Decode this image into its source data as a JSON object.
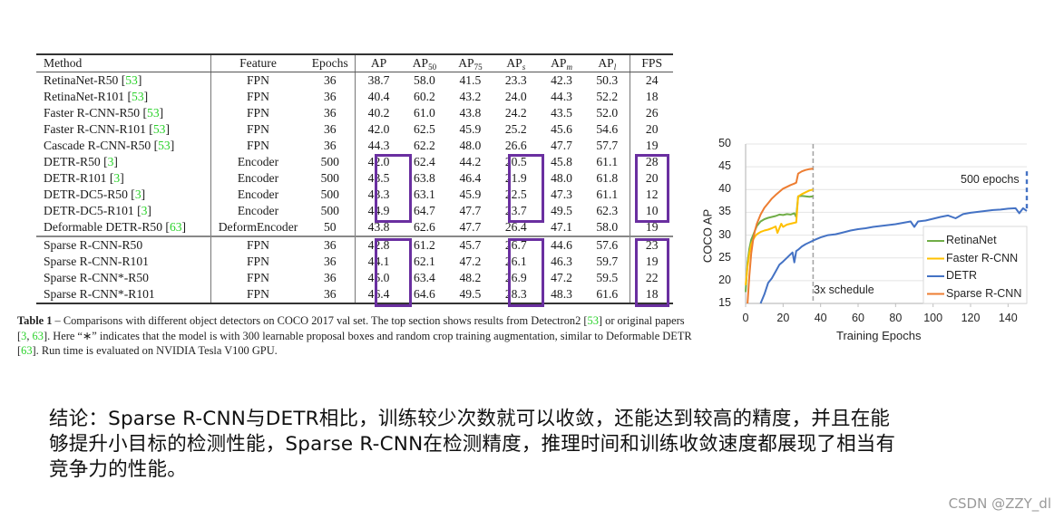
{
  "table": {
    "columns": [
      "Method",
      "Feature",
      "Epochs",
      "AP",
      "AP50",
      "AP75",
      "APs",
      "APm",
      "APl",
      "FPS"
    ],
    "header": {
      "method": "Method",
      "feature": "Feature",
      "epochs": "Epochs",
      "ap": "AP",
      "ap50_base": "AP",
      "ap50_sub": "50",
      "ap75_base": "AP",
      "ap75_sub": "75",
      "aps_base": "AP",
      "aps_sub": "s",
      "apm_base": "AP",
      "apm_sub": "m",
      "apl_base": "AP",
      "apl_sub": "l",
      "fps": "FPS"
    },
    "top_section": [
      {
        "method": "RetinaNet-R50",
        "ref": "53",
        "feature": "FPN",
        "epochs": "36",
        "ap": "38.7",
        "ap50": "58.0",
        "ap75": "41.5",
        "aps": "23.3",
        "apm": "42.3",
        "apl": "50.3",
        "fps": "24"
      },
      {
        "method": "RetinaNet-R101",
        "ref": "53",
        "feature": "FPN",
        "epochs": "36",
        "ap": "40.4",
        "ap50": "60.2",
        "ap75": "43.2",
        "aps": "24.0",
        "apm": "44.3",
        "apl": "52.2",
        "fps": "18"
      },
      {
        "method": "Faster R-CNN-R50",
        "ref": "53",
        "feature": "FPN",
        "epochs": "36",
        "ap": "40.2",
        "ap50": "61.0",
        "ap75": "43.8",
        "aps": "24.2",
        "apm": "43.5",
        "apl": "52.0",
        "fps": "26"
      },
      {
        "method": "Faster R-CNN-R101",
        "ref": "53",
        "feature": "FPN",
        "epochs": "36",
        "ap": "42.0",
        "ap50": "62.5",
        "ap75": "45.9",
        "aps": "25.2",
        "apm": "45.6",
        "apl": "54.6",
        "fps": "20"
      },
      {
        "method": "Cascade R-CNN-R50",
        "ref": "53",
        "feature": "FPN",
        "epochs": "36",
        "ap": "44.3",
        "ap50": "62.2",
        "ap75": "48.0",
        "aps": "26.6",
        "apm": "47.7",
        "apl": "57.7",
        "fps": "19"
      },
      {
        "method": "DETR-R50",
        "ref": "3",
        "feature": "Encoder",
        "epochs": "500",
        "ap": "42.0",
        "ap50": "62.4",
        "ap75": "44.2",
        "aps": "20.5",
        "apm": "45.8",
        "apl": "61.1",
        "fps": "28"
      },
      {
        "method": "DETR-R101",
        "ref": "3",
        "feature": "Encoder",
        "epochs": "500",
        "ap": "43.5",
        "ap50": "63.8",
        "ap75": "46.4",
        "aps": "21.9",
        "apm": "48.0",
        "apl": "61.8",
        "fps": "20"
      },
      {
        "method": "DETR-DC5-R50",
        "ref": "3",
        "feature": "Encoder",
        "epochs": "500",
        "ap": "43.3",
        "ap50": "63.1",
        "ap75": "45.9",
        "aps": "22.5",
        "apm": "47.3",
        "apl": "61.1",
        "fps": "12"
      },
      {
        "method": "DETR-DC5-R101",
        "ref": "3",
        "feature": "Encoder",
        "epochs": "500",
        "ap": "44.9",
        "ap50": "64.7",
        "ap75": "47.7",
        "aps": "23.7",
        "apm": "49.5",
        "apl": "62.3",
        "fps": "10"
      },
      {
        "method": "Deformable DETR-R50",
        "ref": "63",
        "feature": "DeformEncoder",
        "epochs": "50",
        "ap": "43.8",
        "ap50": "62.6",
        "ap75": "47.7",
        "aps": "26.4",
        "apm": "47.1",
        "apl": "58.0",
        "fps": "19"
      }
    ],
    "bottom_section": [
      {
        "method": "Sparse R-CNN-R50",
        "feature": "FPN",
        "epochs": "36",
        "ap": "42.8",
        "ap50": "61.2",
        "ap75": "45.7",
        "aps": "26.7",
        "apm": "44.6",
        "apl": "57.6",
        "fps": "23"
      },
      {
        "method": "Sparse R-CNN-R101",
        "feature": "FPN",
        "epochs": "36",
        "ap": "44.1",
        "ap50": "62.1",
        "ap75": "47.2",
        "aps": "26.1",
        "apm": "46.3",
        "apl": "59.7",
        "fps": "19"
      },
      {
        "method": "Sparse R-CNN*-R50",
        "feature": "FPN",
        "epochs": "36",
        "ap": "45.0",
        "ap50": "63.4",
        "ap75": "48.2",
        "aps": "26.9",
        "apm": "47.2",
        "apl": "59.5",
        "fps": "22"
      },
      {
        "method": "Sparse R-CNN*-R101",
        "feature": "FPN",
        "epochs": "36",
        "ap": "46.4",
        "ap50": "64.6",
        "ap75": "49.5",
        "aps": "28.3",
        "apm": "48.3",
        "apl": "61.6",
        "fps": "18"
      }
    ],
    "bold_cells": [
      "DETR-DC5-R101.ap50",
      "DETR-DC5-R101.apm",
      "DETR-DC5-R101.apl",
      "Sparse R-CNN*-R101.ap",
      "Sparse R-CNN*-R101.ap75",
      "Sparse R-CNN*-R101.aps"
    ],
    "highlight_color": "#6a2fa0",
    "ref_color": "#2bd22b"
  },
  "caption": {
    "label": "Table 1",
    "dash": " – ",
    "part1": "Comparisons with different object detectors on COCO 2017 val set.  The top section shows results from Detectron2 [",
    "ref1": "53",
    "part2": "] or original papers [",
    "ref2": "3",
    "part3": ", ",
    "ref3": "63",
    "part4": "]. Here “∗” indicates that the model is with 300 learnable proposal boxes and random crop training augmentation, similar to Deformable DETR [",
    "ref4": "63",
    "part5": "]. Run time is evaluated on NVIDIA Tesla V100 GPU."
  },
  "chart_data": {
    "type": "line",
    "title": "",
    "xlabel": "Training Epochs",
    "ylabel": "COCO AP",
    "xlim": [
      0,
      150
    ],
    "ylim": [
      15,
      50
    ],
    "xticks": [
      0,
      20,
      40,
      60,
      80,
      100,
      120,
      140
    ],
    "yticks": [
      15,
      20,
      25,
      30,
      35,
      40,
      45,
      50
    ],
    "grid": "horizontal",
    "legend_position": "lower right",
    "annotations": [
      {
        "text": "3x schedule",
        "x": 36,
        "type": "vertical-dashed-line",
        "color": "#a6a6a6"
      },
      {
        "text": "500 epochs",
        "x": 150,
        "type": "vertical-dashed-segment",
        "from": 35.5,
        "to": 44,
        "color": "#4472c4"
      }
    ],
    "series": [
      {
        "name": "RetinaNet",
        "color": "#70ad47",
        "x": [
          0,
          1,
          2,
          3,
          4,
          5,
          6,
          8,
          10,
          12,
          14,
          16,
          18,
          20,
          22,
          24,
          26,
          27,
          28,
          30,
          32,
          34,
          36
        ],
        "y": [
          17.5,
          24,
          27,
          29,
          30,
          31,
          32,
          33,
          33.5,
          33.8,
          34,
          34.2,
          34.5,
          34.4,
          34.6,
          34.5,
          34.8,
          34,
          38.5,
          38.6,
          38.5,
          38.4,
          38.5
        ]
      },
      {
        "name": "Faster R-CNN",
        "color": "#ffc000",
        "x": [
          0,
          1,
          2,
          3,
          4,
          5,
          6,
          8,
          10,
          12,
          14,
          16,
          17,
          18,
          19,
          20,
          22,
          24,
          26,
          27,
          28,
          30,
          32,
          34,
          36
        ],
        "y": [
          19,
          23,
          26,
          28,
          29,
          29.7,
          30.2,
          30.7,
          31,
          31.2,
          31.5,
          31.9,
          30.5,
          31.5,
          32.5,
          31.8,
          32.3,
          32.5,
          32.7,
          32.8,
          38.5,
          39,
          39.4,
          39.8,
          40
        ]
      },
      {
        "name": "DETR",
        "color": "#4472c4",
        "x": [
          8,
          10,
          12,
          14,
          16,
          18,
          20,
          22,
          24,
          25,
          26,
          27,
          28,
          30,
          32,
          34,
          36,
          40,
          44,
          48,
          52,
          56,
          60,
          64,
          68,
          72,
          76,
          80,
          84,
          88,
          90,
          92,
          96,
          100,
          104,
          108,
          112,
          116,
          120,
          124,
          128,
          132,
          136,
          140,
          144,
          146,
          148,
          150
        ],
        "y": [
          15,
          17,
          19.5,
          20.5,
          22,
          23.5,
          24.2,
          25,
          25.8,
          26.2,
          24,
          26.5,
          26.8,
          27.5,
          28,
          28.4,
          28.8,
          29.5,
          30,
          30.2,
          30.6,
          31,
          31.3,
          31.5,
          31.8,
          32,
          32.2,
          32.4,
          32.7,
          33,
          31.8,
          33,
          33.2,
          33.6,
          34,
          34.3,
          33.7,
          34.6,
          34.9,
          35.1,
          35.3,
          35.5,
          35.6,
          35.8,
          35.9,
          34.8,
          35.9,
          35.3
        ]
      },
      {
        "name": "Sparse R-CNN",
        "color": "#ed7d31",
        "x": [
          1,
          2,
          3,
          4,
          5,
          6,
          8,
          10,
          12,
          14,
          16,
          18,
          20,
          22,
          24,
          26,
          27,
          28,
          30,
          32,
          34,
          36
        ],
        "y": [
          15,
          21,
          26,
          29,
          31,
          32.5,
          34.5,
          36,
          37,
          38,
          38.8,
          39.5,
          40.2,
          40.6,
          41,
          41.3,
          41.5,
          43.5,
          44,
          44.3,
          44.5,
          44.6
        ]
      }
    ]
  },
  "chart": {
    "ylabel": "COCO AP",
    "xlabel": "Training Epochs",
    "xticks": [
      "0",
      "20",
      "40",
      "60",
      "80",
      "100",
      "120",
      "140"
    ],
    "yticks": [
      "50",
      "45",
      "40",
      "35",
      "30",
      "25",
      "20",
      "15"
    ],
    "legend": [
      "RetinaNet",
      "Faster R-CNN",
      "DETR",
      "Sparse R-CNN"
    ],
    "annotation_schedule": "3x schedule",
    "annotation_epochs": "500 epochs"
  },
  "conclusion": {
    "line1": "结论：Sparse R-CNN与DETR相比，训练较少次数就可以收敛，还能达到较高的精度，并且在能",
    "line2": "够提升小目标的检测性能，Sparse R-CNN在检测精度，推理时间和训练收敛速度都展现了相当有",
    "line3": "竞争力的性能。"
  },
  "watermark": "CSDN @ZZY_dl"
}
